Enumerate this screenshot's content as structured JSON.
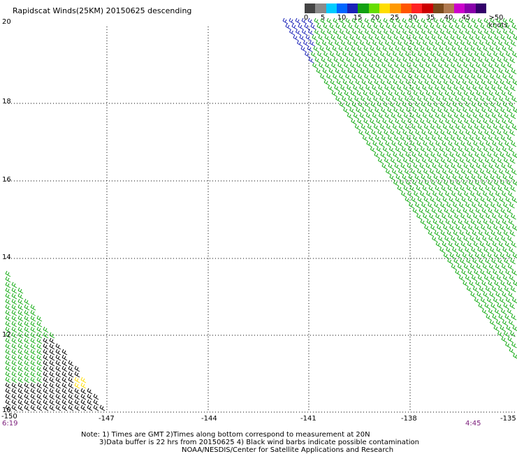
{
  "title": "Rapidscat Winds(25KM) 20150625 descending",
  "legend": {
    "labels": [
      "0",
      "5",
      "10",
      "15",
      "20",
      "25",
      "30",
      "35",
      "40",
      "45",
      ">50 knots"
    ],
    "colors": [
      "#444444",
      "#8a8a8a",
      "#00ccff",
      "#0066ff",
      "#1a22b8",
      "#10a010",
      "#66dd00",
      "#ffdd00",
      "#ff9900",
      "#ff5500",
      "#ff2222",
      "#cc0000",
      "#7a4a1c",
      "#b07a50",
      "#cc00cc",
      "#8800aa",
      "#33006a"
    ]
  },
  "map": {
    "lat_labels": [
      "20",
      "18",
      "16",
      "14",
      "12",
      "10"
    ],
    "lon_labels": [
      "-150",
      "-147",
      "-144",
      "-141",
      "-138",
      "-135"
    ],
    "time_left": "6:19",
    "time_right": "4:45",
    "barb_colors": {
      "green": "#11aa11",
      "blue": "#1a22b8",
      "black": "#000000",
      "yellow": "#ffdd00"
    }
  },
  "note": {
    "line1": "Note: 1) Times are GMT 2)Times along bottom correspond to measurement at 20N",
    "line2": "3)Data buffer is 22 hrs from 20150625 4) Black wind barbs indicate possible contamination",
    "line3": "NOAA/NESDIS/Center for Satellite Applications and Research"
  }
}
